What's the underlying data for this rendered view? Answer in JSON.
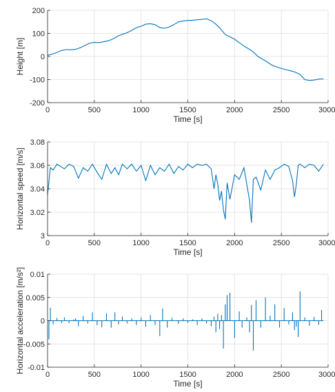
{
  "chart_data": [
    {
      "type": "line",
      "xlabel": "Time [s]",
      "ylabel": "Height [m]",
      "xlim": [
        0,
        3000
      ],
      "ylim": [
        -200,
        200
      ],
      "xticks": [
        "0",
        "500",
        "1000",
        "1500",
        "2000",
        "2500",
        "3000"
      ],
      "yticks": [
        "-200",
        "-100",
        "0",
        "100",
        "200"
      ],
      "grid": true,
      "color": "#0072BD",
      "x": [
        0,
        50,
        100,
        150,
        200,
        250,
        300,
        350,
        400,
        450,
        500,
        550,
        600,
        650,
        700,
        750,
        800,
        850,
        900,
        950,
        1000,
        1050,
        1100,
        1150,
        1200,
        1250,
        1300,
        1350,
        1400,
        1450,
        1500,
        1550,
        1600,
        1650,
        1700,
        1750,
        1800,
        1850,
        1900,
        1950,
        2000,
        2050,
        2100,
        2150,
        2200,
        2250,
        2300,
        2350,
        2400,
        2450,
        2500,
        2550,
        2600,
        2650,
        2700,
        2750,
        2800,
        2850,
        2900,
        2950
      ],
      "y": [
        5,
        10,
        18,
        26,
        30,
        29,
        31,
        38,
        48,
        58,
        61,
        60,
        64,
        68,
        76,
        88,
        96,
        103,
        113,
        125,
        131,
        140,
        142,
        138,
        125,
        122,
        128,
        138,
        150,
        154,
        156,
        157,
        159,
        161,
        163,
        155,
        140,
        120,
        95,
        85,
        75,
        60,
        45,
        33,
        20,
        0,
        -12,
        -24,
        -38,
        -45,
        -52,
        -57,
        -62,
        -68,
        -78,
        -100,
        -104,
        -102,
        -98,
        -97
      ]
    },
    {
      "type": "line",
      "xlabel": "Time [s]",
      "ylabel": "Horizontal speed [m/s]",
      "xlim": [
        0,
        3000
      ],
      "ylim": [
        3,
        3.08
      ],
      "xticks": [
        "0",
        "500",
        "1000",
        "1500",
        "2000",
        "2500",
        "3000"
      ],
      "yticks": [
        "3",
        "3.02",
        "3.04",
        "3.06",
        "3.08"
      ],
      "grid": true,
      "color": "#0072BD",
      "x": [
        0,
        15,
        30,
        60,
        100,
        180,
        230,
        280,
        330,
        380,
        430,
        480,
        530,
        580,
        630,
        680,
        720,
        760,
        800,
        850,
        900,
        950,
        1000,
        1050,
        1100,
        1150,
        1200,
        1250,
        1300,
        1350,
        1400,
        1450,
        1500,
        1550,
        1600,
        1650,
        1700,
        1750,
        1780,
        1800,
        1820,
        1840,
        1860,
        1880,
        1900,
        1920,
        1950,
        2000,
        2050,
        2100,
        2130,
        2160,
        2180,
        2200,
        2230,
        2280,
        2330,
        2380,
        2430,
        2480,
        2530,
        2580,
        2620,
        2640,
        2660,
        2680,
        2700,
        2750,
        2800,
        2850,
        2900,
        2950
      ],
      "y": [
        3.035,
        3.046,
        3.058,
        3.056,
        3.061,
        3.057,
        3.061,
        3.059,
        3.049,
        3.058,
        3.055,
        3.061,
        3.054,
        3.048,
        3.061,
        3.053,
        3.058,
        3.052,
        3.061,
        3.057,
        3.061,
        3.055,
        3.06,
        3.047,
        3.06,
        3.052,
        3.058,
        3.055,
        3.061,
        3.053,
        3.059,
        3.056,
        3.061,
        3.058,
        3.061,
        3.06,
        3.061,
        3.057,
        3.04,
        3.052,
        3.044,
        3.03,
        3.038,
        3.022,
        3.014,
        3.045,
        3.031,
        3.052,
        3.048,
        3.058,
        3.044,
        3.03,
        3.011,
        3.048,
        3.05,
        3.039,
        3.056,
        3.048,
        3.056,
        3.058,
        3.061,
        3.059,
        3.047,
        3.033,
        3.044,
        3.06,
        3.061,
        3.058,
        3.061,
        3.06,
        3.055,
        3.061
      ]
    },
    {
      "type": "line",
      "xlabel": "Time [s]",
      "ylabel": "Horizontal acceleration [m/s²]",
      "xlim": [
        0,
        3000
      ],
      "ylim": [
        -0.01,
        0.01
      ],
      "xticks": [
        "0",
        "500",
        "1000",
        "1500",
        "2000",
        "2500",
        "3000"
      ],
      "yticks": [
        "-0.01",
        "-0.005",
        "0",
        "0.005",
        "0.01"
      ],
      "grid": true,
      "color": "#0072BD",
      "x": [
        15,
        30,
        60,
        100,
        150,
        180,
        230,
        280,
        300,
        330,
        380,
        430,
        480,
        530,
        580,
        630,
        680,
        720,
        760,
        800,
        850,
        900,
        950,
        1000,
        1050,
        1100,
        1150,
        1200,
        1230,
        1280,
        1330,
        1400,
        1450,
        1500,
        1550,
        1600,
        1650,
        1700,
        1750,
        1780,
        1800,
        1820,
        1840,
        1860,
        1880,
        1900,
        1920,
        1950,
        2000,
        2050,
        2080,
        2130,
        2160,
        2180,
        2200,
        2230,
        2280,
        2330,
        2380,
        2430,
        2480,
        2530,
        2580,
        2620,
        2640,
        2660,
        2680,
        2700,
        2750,
        2800,
        2850,
        2900,
        2930
      ],
      "y": [
        -0.004,
        0.0028,
        -0.0008,
        0.0006,
        -0.0005,
        0.0007,
        -0.0005,
        0.0003,
        0.0005,
        -0.0012,
        0.001,
        -0.0006,
        0.0018,
        -0.001,
        -0.0014,
        0.0016,
        -0.0015,
        0.0018,
        -0.0008,
        0.0009,
        -0.0006,
        0.0005,
        -0.0009,
        0.0007,
        -0.0013,
        0.0012,
        -0.0009,
        -0.0033,
        0.0026,
        -0.0015,
        0.0006,
        -0.0007,
        0.0005,
        -0.0005,
        0.0003,
        -0.0009,
        0.0005,
        -0.0006,
        -0.0012,
        0.0009,
        -0.0025,
        0.0015,
        -0.0018,
        0.0012,
        -0.006,
        0.0035,
        0.0055,
        0.006,
        -0.0037,
        0.002,
        -0.0015,
        0.0007,
        -0.0025,
        0.0034,
        -0.0064,
        0.0044,
        -0.0015,
        0.005,
        0.0011,
        0.0035,
        -0.0015,
        0.0027,
        -0.0008,
        0.0018,
        -0.002,
        -0.0013,
        -0.0035,
        0.0063,
        0.0007,
        -0.0011,
        0.0008,
        -0.0009,
        0.0023
      ]
    }
  ]
}
